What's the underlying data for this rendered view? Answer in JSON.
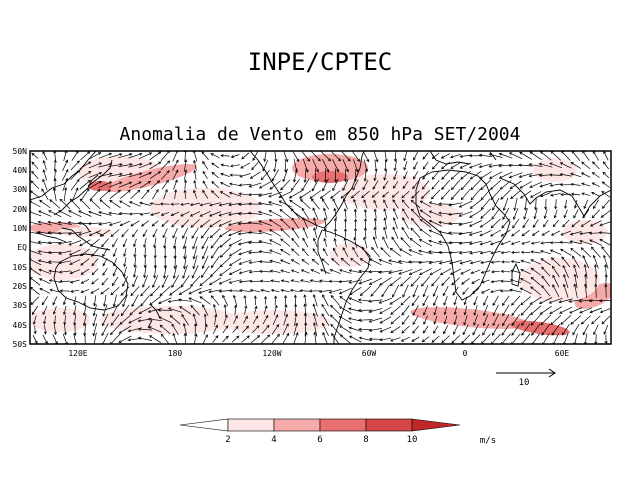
{
  "header": {
    "title": "INPE/CPTEC",
    "subtitle": "Anomalia de Vento em 850 hPa SET/2004"
  },
  "map": {
    "lat_labels": [
      "50N",
      "40N",
      "30N",
      "20N",
      "10N",
      "EQ",
      "10S",
      "20S",
      "30S",
      "40S",
      "50S"
    ],
    "lon_labels": [
      "120E",
      "180",
      "120W",
      "60W",
      "0",
      "60E"
    ],
    "lat_range": [
      -50,
      50
    ],
    "lon_range_note": "90E eastward to 90E (360 degrees, Pacific-centered)"
  },
  "reference_vector": {
    "label": "10",
    "magnitude_ms": 10
  },
  "colorbar": {
    "labels": [
      "2",
      "4",
      "6",
      "8",
      "10"
    ],
    "unit": "m/s",
    "colors": [
      "#ffffff",
      "#fde6e6",
      "#f6aaaa",
      "#e87070",
      "#d64848",
      "#c02828"
    ]
  },
  "colors": {
    "background": "#ffffff",
    "frame": "#000000",
    "vector": "#000000",
    "shade_light": "#fde6e6",
    "shade_mid": "#f6aaaa",
    "shade_strong": "#e87070"
  }
}
